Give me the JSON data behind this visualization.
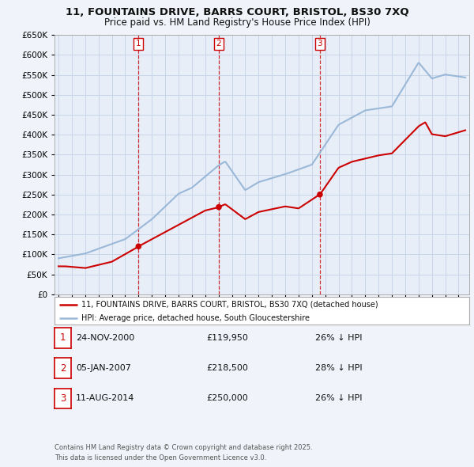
{
  "title": "11, FOUNTAINS DRIVE, BARRS COURT, BRISTOL, BS30 7XQ",
  "subtitle": "Price paid vs. HM Land Registry's House Price Index (HPI)",
  "hpi_color": "#9ab8d8",
  "price_color": "#cc0000",
  "background_color": "#f0f4fa",
  "plot_bg_color": "#e8eef8",
  "grid_color": "#c8d4e8",
  "ylim": [
    0,
    650000
  ],
  "yticks": [
    0,
    50000,
    100000,
    150000,
    200000,
    250000,
    300000,
    350000,
    400000,
    450000,
    500000,
    550000,
    600000,
    650000
  ],
  "sales": [
    {
      "date_num": 2001.0,
      "price": 119950,
      "label": "1"
    },
    {
      "date_num": 2007.02,
      "price": 218500,
      "label": "2"
    },
    {
      "date_num": 2014.6,
      "price": 250000,
      "label": "3"
    }
  ],
  "legend_price_label": "11, FOUNTAINS DRIVE, BARRS COURT, BRISTOL, BS30 7XQ (detached house)",
  "legend_hpi_label": "HPI: Average price, detached house, South Gloucestershire",
  "table_data": [
    {
      "num": "1",
      "date": "24-NOV-2000",
      "price": "£119,950",
      "pct": "26% ↓ HPI"
    },
    {
      "num": "2",
      "date": "05-JAN-2007",
      "price": "£218,500",
      "pct": "28% ↓ HPI"
    },
    {
      "num": "3",
      "date": "11-AUG-2014",
      "price": "£250,000",
      "pct": "26% ↓ HPI"
    }
  ],
  "footer": "Contains HM Land Registry data © Crown copyright and database right 2025.\nThis data is licensed under the Open Government Licence v3.0."
}
